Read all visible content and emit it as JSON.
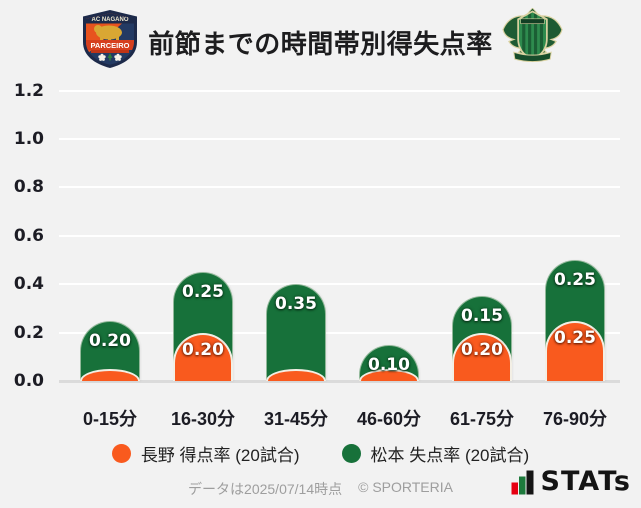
{
  "header": {
    "title": "前節までの時間帯別得失点率",
    "home_crest": {
      "top_text": "AC NAGANO",
      "banner_text": "PARCEIRO"
    }
  },
  "chart_data": {
    "type": "bar",
    "stacked": true,
    "title": "前節までの時間帯別得失点率",
    "categories": [
      "0-15分",
      "16-30分",
      "31-45分",
      "46-60分",
      "61-75分",
      "76-90分"
    ],
    "series": [
      {
        "name": "長野 得点率 (20試合)",
        "color": "#f95a1e",
        "values": [
          0.05,
          0.2,
          0.05,
          0.05,
          0.2,
          0.25
        ],
        "value_labels": [
          "",
          "0.20",
          "",
          "",
          "0.20",
          "0.25"
        ]
      },
      {
        "name": "松本 失点率 (20試合)",
        "color": "#17713a",
        "values": [
          0.2,
          0.25,
          0.35,
          0.1,
          0.15,
          0.25
        ],
        "value_labels": [
          "0.20",
          "0.25",
          "0.35",
          "0.10",
          "0.15",
          "0.25"
        ]
      }
    ],
    "ylim": [
      0,
      1.3
    ],
    "yticks": [
      "0.0",
      "0.2",
      "0.4",
      "0.6",
      "0.8",
      "1.0",
      "1.2"
    ],
    "grid": true,
    "legend_position": "bottom"
  },
  "footer": {
    "note": "データは2025/07/14時点",
    "copyright": "© SPORTERIA",
    "brand": "STATs"
  },
  "colors": {
    "background": "#f2f2f2",
    "grid": "#ffffff",
    "axis": "#dbdbdb",
    "nagano_orange": "#f95a1e",
    "matsumoto_green": "#17713a"
  }
}
